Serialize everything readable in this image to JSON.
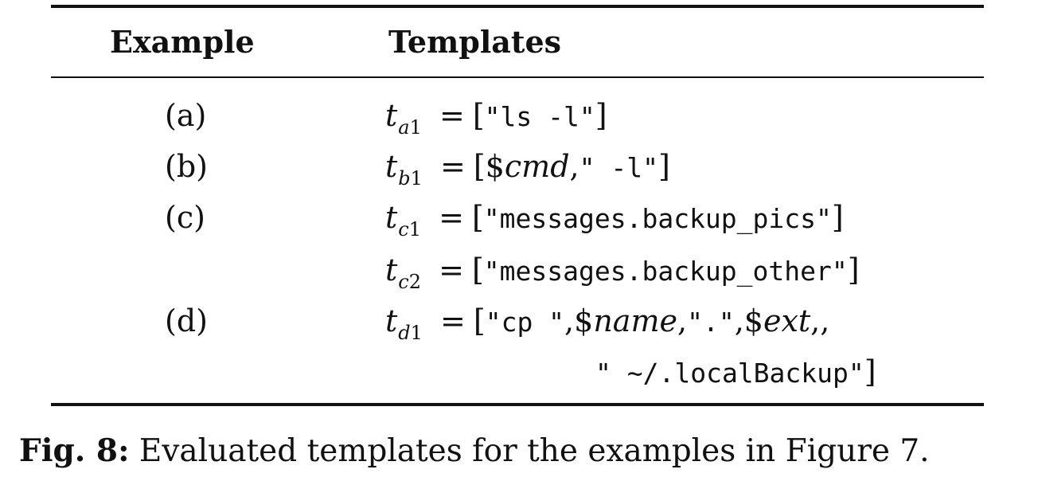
{
  "table": {
    "headers": {
      "example": "Example",
      "templates": "Templates"
    },
    "rows": [
      {
        "label": "(a)",
        "var": "t",
        "sub_letter": "a",
        "sub_num": "1",
        "eq": "=",
        "open": "[",
        "s1": "\"ls -l\"",
        "close": "]"
      },
      {
        "label": "(b)",
        "var": "t",
        "sub_letter": "b",
        "sub_num": "1",
        "eq": "=",
        "open": "[",
        "dollar": "$",
        "var1": "cmd",
        "comma": ",",
        "s1": "\" -l\"",
        "close": "]"
      },
      {
        "label": "(c)",
        "var": "t",
        "sub_letter": "c",
        "sub_num": "1",
        "eq": "=",
        "open": "[",
        "s1": "\"messages.backup_pics\"",
        "close": "]"
      },
      {
        "label": "",
        "var": "t",
        "sub_letter": "c",
        "sub_num": "2",
        "eq": "=",
        "open": "[",
        "s1": "\"messages.backup_other\"",
        "close": "]"
      },
      {
        "label": "(d)",
        "var": "t",
        "sub_letter": "d",
        "sub_num": "1",
        "eq": "=",
        "open": "[",
        "s1": "\"cp \"",
        "comma1": ",",
        "dollar1": "$",
        "var1": "name",
        "comma2": ",",
        "s2": "\".\"",
        "comma3": ",",
        "dollar2": "$",
        "var2": "ext",
        "comma4": ",",
        "comma5": ",",
        "cont_s": "\" ~/.localBackup\"",
        "close": "]"
      }
    ]
  },
  "caption": {
    "label": "Fig. 8:",
    "text": "Evaluated templates for the examples in Figure 7."
  }
}
